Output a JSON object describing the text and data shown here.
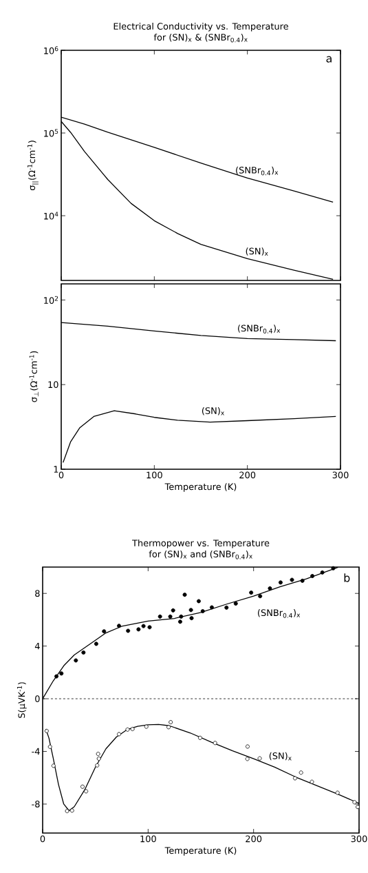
{
  "chart_data": [
    {
      "type": "line",
      "title": "Electrical Conductivity vs. Temperature",
      "subtitle": "for (SN)$_{x}$ & (SNBr$_{0.4}$)$_{x}$",
      "ylabel": "σ$_{||}$(Ω$^{-1}$cm$^{-1}$)",
      "annotations": [
        "a"
      ],
      "log": "y",
      "tick_labels": "y",
      "xlim": [
        0,
        300
      ],
      "xticks": [
        0,
        100,
        200,
        300
      ],
      "ylim": [
        1650,
        1000000
      ],
      "yticks": [
        {
          "value": 10000,
          "label": "10$^{4}$"
        },
        {
          "value": 100000,
          "label": "10$^{5}$"
        },
        {
          "value": 1000000,
          "label": "10$^{6}$"
        }
      ],
      "series": [
        {
          "name": "(SNBr$_{0.4}$)$_{x}$",
          "color": "#000000",
          "x": [
            0,
            25,
            50,
            100,
            150,
            200,
            250,
            292
          ],
          "values": [
            155000,
            128000,
            102000,
            67000,
            43300,
            28500,
            19900,
            14600
          ]
        },
        {
          "name": "(SN)$_{x}$",
          "color": "#000000",
          "x": [
            0,
            10,
            25,
            50,
            75,
            100,
            125,
            150,
            200,
            250,
            292
          ],
          "values": [
            138000,
            102000,
            59800,
            27400,
            14100,
            8700,
            6100,
            4500,
            3020,
            2190,
            1700
          ]
        }
      ]
    },
    {
      "type": "line",
      "xlabel": "Temperature (K)",
      "ylabel": "σ$_{⊥}$(Ω$^{-1}$cm$^{-1}$)",
      "log": "y",
      "xlim": [
        0,
        300
      ],
      "xticks": [
        0,
        100,
        200,
        300
      ],
      "ylim": [
        1,
        155
      ],
      "yticks": [
        1,
        10,
        {
          "value": 100,
          "label": "10$^{2}$"
        }
      ],
      "series": [
        {
          "name": "(SNBr$_{0.4}$)$_{x}$",
          "color": "#000000",
          "x": [
            0,
            50,
            100,
            150,
            200,
            250,
            295
          ],
          "values": [
            54,
            49,
            43,
            38,
            35,
            34,
            33
          ]
        },
        {
          "name": "(SN)$_{x}$",
          "color": "#000000",
          "x": [
            2,
            10,
            20,
            35,
            57,
            80,
            100,
            125,
            160,
            200,
            250,
            295
          ],
          "values": [
            1.2,
            2.1,
            3.1,
            4.2,
            4.9,
            4.5,
            4.1,
            3.8,
            3.6,
            3.75,
            3.96,
            4.2
          ]
        }
      ]
    },
    {
      "type": "scatter",
      "title": "Thermopower vs. Temperature",
      "subtitle": "for (SN)$_{x}$ and (SNBr$_{0.4}$)$_{x}$",
      "xlabel": "Temperature (K)",
      "ylabel": "S(μVK$^{-1}$)",
      "annotations": [
        "b"
      ],
      "xlim": [
        0,
        300
      ],
      "xticks": [
        0,
        100,
        200,
        300
      ],
      "ylim": [
        -10.2,
        10
      ],
      "yticks": [
        -8,
        -4,
        0,
        4,
        8
      ],
      "ref_lines": [
        {
          "axis": "y",
          "value": 0,
          "label": null,
          "line_style": "dashed"
        }
      ],
      "series": [
        {
          "color": "#000000",
          "x": [
            13.1,
            17.8,
            31.5,
            38.7,
            50.8,
            58.2,
            72.4,
            81,
            90.9,
            95.6,
            101.4,
            111.3,
            121,
            123.7,
            130.4,
            131.3,
            134.7,
            140.6,
            141.2,
            148,
            151.8,
            160.4,
            174.3,
            183.1,
            197.7,
            206.2,
            215.5,
            225.6,
            236.4,
            246.3,
            255.7,
            265.2,
            275.5
          ],
          "values": [
            1.7,
            1.92,
            2.91,
            3.51,
            4.17,
            5.12,
            5.54,
            5.16,
            5.27,
            5.52,
            5.43,
            6.24,
            6.24,
            6.71,
            5.85,
            6.24,
            7.9,
            6.74,
            6.12,
            7.41,
            6.65,
            6.94,
            6.92,
            7.23,
            8.06,
            7.79,
            8.38,
            8.83,
            9.03,
            8.96,
            9.32,
            9.59,
            9.91
          ]
        },
        {
          "type": "line",
          "name": "(SNBr$_{0.4}$)$_{x}$",
          "color": "#000000",
          "x": [
            0,
            10,
            20,
            30,
            50,
            60,
            75,
            100,
            125,
            150,
            175,
            200,
            225,
            250,
            280
          ],
          "values": [
            0,
            1.35,
            2.5,
            3.33,
            4.44,
            5.0,
            5.5,
            5.9,
            6.1,
            6.55,
            7.2,
            7.8,
            8.5,
            9.1,
            9.98
          ]
        },
        {
          "color": "#000000",
          "x": [
            3.8,
            7.0,
            10.3,
            23.2,
            27.9,
            37.8,
            41.2,
            51.7,
            52.6,
            53.3,
            72.4,
            80.5,
            85.2,
            98.3,
            119.4,
            121.4,
            149.3,
            163.5,
            194.3,
            194.1,
            205.8,
            239.3,
            245,
            255.3,
            279.6,
            295.7,
            298.7
          ],
          "values": [
            -2.45,
            -3.65,
            -5.09,
            -8.53,
            -8.49,
            -6.68,
            -7.03,
            -5.06,
            -4.19,
            -4.55,
            -2.69,
            -2.34,
            -2.3,
            -2.12,
            -2.16,
            -1.78,
            -2.97,
            -3.36,
            -3.63,
            -4.57,
            -4.53,
            -6.04,
            -5.61,
            -6.31,
            -7.14,
            -7.86,
            -8.22
          ]
        },
        {
          "type": "line",
          "name": "(SN)$_{x}$",
          "color": "#000000",
          "x": [
            3,
            6,
            10,
            15,
            20,
            25,
            30,
            40,
            50,
            60,
            70,
            80,
            90,
            100,
            110,
            120,
            140,
            160,
            180,
            200,
            220,
            240,
            260,
            280,
            300
          ],
          "values": [
            -2.3,
            -3.0,
            -4.5,
            -6.5,
            -8.0,
            -8.5,
            -8.2,
            -6.9,
            -5.2,
            -3.8,
            -2.9,
            -2.35,
            -2.1,
            -1.98,
            -1.95,
            -2.05,
            -2.6,
            -3.3,
            -3.95,
            -4.55,
            -5.2,
            -5.95,
            -6.6,
            -7.25,
            -7.95
          ]
        }
      ]
    }
  ]
}
